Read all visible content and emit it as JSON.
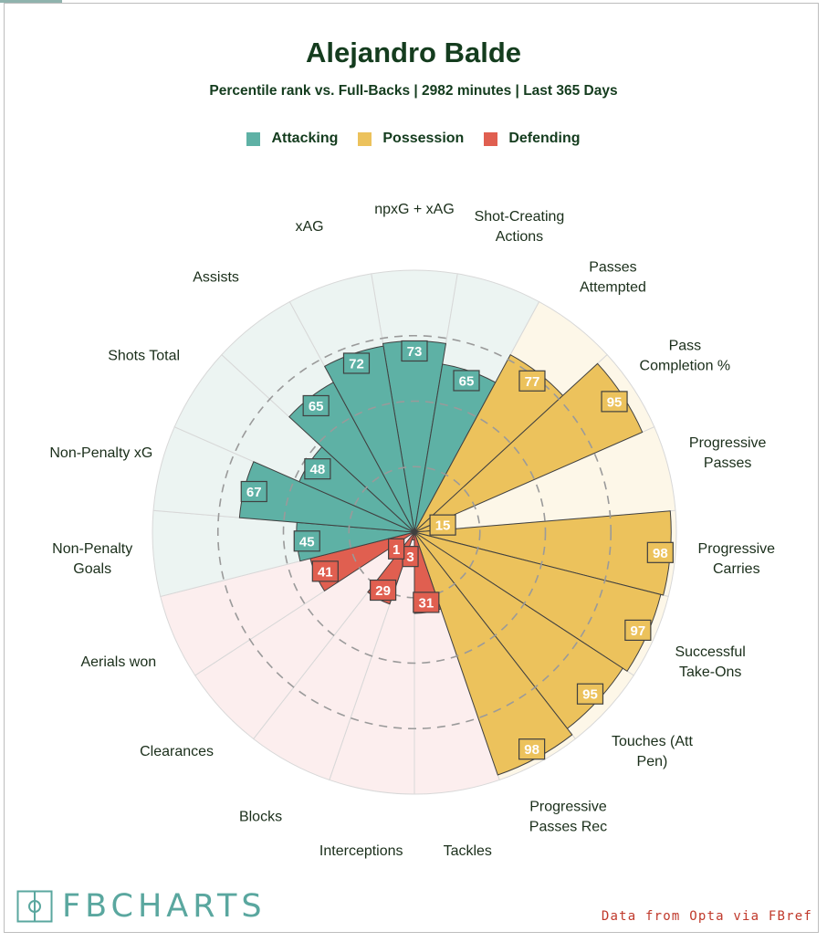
{
  "title": "Alejandro Balde",
  "subtitle": "Percentile rank vs. Full-Backs | 2982 minutes | Last 365 Days",
  "legend": [
    {
      "label": "Attacking",
      "color": "#5eb1a5"
    },
    {
      "label": "Possession",
      "color": "#ecc25c"
    },
    {
      "label": "Defending",
      "color": "#e05f50"
    }
  ],
  "colors": {
    "Attacking": {
      "fill": "#5eb1a5",
      "bg": "#ecf4f2"
    },
    "Possession": {
      "fill": "#ecc25c",
      "bg": "#fdf7e8"
    },
    "Defending": {
      "fill": "#e05f50",
      "bg": "#fceeee"
    },
    "text": "#143c1e",
    "brand": "#5aa79f",
    "source": "#c0392b"
  },
  "chart_data": {
    "type": "radial-bar",
    "title": "Alejandro Balde",
    "subtitle": "Percentile rank vs. Full-Backs | 2982 minutes | Last 365 Days",
    "range": [
      0,
      100
    ],
    "gridlines": [
      25,
      50,
      75
    ],
    "categories": [
      {
        "label": "npxG + xAG",
        "value": 73,
        "group": "Attacking"
      },
      {
        "label": "Shot-Creating Actions",
        "value": 65,
        "group": "Attacking"
      },
      {
        "label": "Passes Attempted",
        "value": 77,
        "group": "Possession"
      },
      {
        "label": "Pass Completion %",
        "value": 95,
        "group": "Possession"
      },
      {
        "label": "Progressive Passes",
        "value": 15,
        "group": "Possession"
      },
      {
        "label": "Progressive Carries",
        "value": 98,
        "group": "Possession"
      },
      {
        "label": "Successful Take-Ons",
        "value": 97,
        "group": "Possession"
      },
      {
        "label": "Touches (Att Pen)",
        "value": 95,
        "group": "Possession"
      },
      {
        "label": "Progressive Passes Rec",
        "value": 98,
        "group": "Possession"
      },
      {
        "label": "Tackles",
        "value": 31,
        "group": "Defending"
      },
      {
        "label": "Interceptions",
        "value": 3,
        "group": "Defending"
      },
      {
        "label": "Blocks",
        "value": 29,
        "group": "Defending"
      },
      {
        "label": "Clearances",
        "value": 1,
        "group": "Defending"
      },
      {
        "label": "Aerials won",
        "value": 41,
        "group": "Defending"
      },
      {
        "label": "Non-Penalty Goals",
        "value": 45,
        "group": "Attacking"
      },
      {
        "label": "Non-Penalty xG",
        "value": 67,
        "group": "Attacking"
      },
      {
        "label": "Shots Total",
        "value": 48,
        "group": "Attacking"
      },
      {
        "label": "Assists",
        "value": 65,
        "group": "Attacking"
      },
      {
        "label": "xAG",
        "value": 72,
        "group": "Attacking"
      }
    ]
  },
  "branding": {
    "name": "FBCHARTS",
    "source": "Data from Opta via FBref"
  }
}
